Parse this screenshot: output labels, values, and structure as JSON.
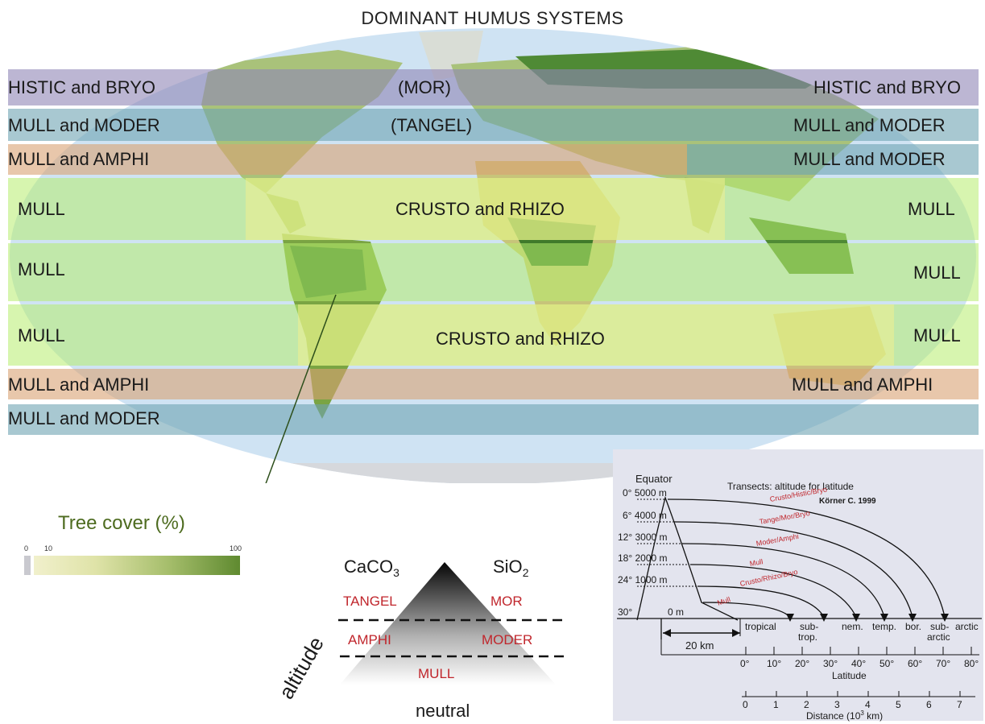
{
  "title": "DOMINANT HUMUS SYSTEMS",
  "map": {
    "band_labels": {
      "histic_left": "HISTIC and BRYO",
      "mor": "(MOR)",
      "histic_right": "HISTIC and BRYO",
      "mull_moder_left_1": "MULL and MODER",
      "tangel": "(TANGEL)",
      "mull_moder_right_1": "MULL and MODER",
      "mull_amphi_left_1": "MULL and AMPHI",
      "mull_moder_right_2": "MULL and MODER",
      "mull_left_1": "MULL",
      "crusto_rhizo_north": "CRUSTO and RHIZO",
      "mull_right_1": "MULL",
      "mull_left_2": "MULL",
      "mull_right_2": "MULL",
      "mull_left_3": "MULL",
      "crusto_rhizo_south": "CRUSTO and RHIZO",
      "mull_right_3": "MULL",
      "mull_amphi_left_2": "MULL and AMPHI",
      "mull_amphi_right_2": "MULL and AMPHI",
      "mull_moder_left_3": "MULL and MODER"
    },
    "colors": {
      "ocean": "#cfe3f3",
      "land": "#a9c27a",
      "forest": "#3f7a2a",
      "purple_band": "#8f85b5",
      "blue_band": "#6ea3b3",
      "orange_band": "#d8a273",
      "green_band": "#b7ec6e",
      "yellow_band": "#e7ef8c"
    }
  },
  "legend": {
    "title": "Tree cover (%)",
    "tick_0": "0",
    "tick_10": "10",
    "tick_100": "100"
  },
  "triangle": {
    "caco3_main": "CaCO",
    "caco3_sub": "3",
    "sio2_main": "SiO",
    "sio2_sub": "2",
    "tangel": "TANGEL",
    "mor": "MOR",
    "amphi": "AMPHI",
    "moder": "MODER",
    "mull": "MULL",
    "neutral": "neutral",
    "altitude": "altitude"
  },
  "inset": {
    "equator": "Equator",
    "title": "Transects: altitude for latitude",
    "citation": "Körner C. 1999",
    "altitudes": [
      {
        "lat": "0°",
        "alt": "5000 m"
      },
      {
        "lat": "6°",
        "alt": "4000 m"
      },
      {
        "lat": "12°",
        "alt": "3000 m"
      },
      {
        "lat": "18°",
        "alt": "2000 m"
      },
      {
        "lat": "24°",
        "alt": "1000 m"
      },
      {
        "lat": "30°",
        "alt": "0 m"
      }
    ],
    "arcs": [
      "Crusto/Histic/Bryo",
      "Tange/Mor/Bryo",
      "Moder/Amphi",
      "Mull",
      "Crusto/Rhizo/Bryo",
      "Mull"
    ],
    "distance_20km": "20 km",
    "zones": [
      "tropical",
      "sub-",
      "trop.",
      "nem.",
      "temp.",
      "bor.",
      "sub-",
      "arctic",
      "arctic"
    ],
    "latitude_ticks": [
      "0°",
      "10°",
      "20°",
      "30°",
      "40°",
      "50°",
      "60°",
      "70°",
      "80°"
    ],
    "latitude_label": "Latitude",
    "distance_ticks": [
      "0",
      "1",
      "2",
      "3",
      "4",
      "5",
      "6",
      "7"
    ],
    "distance_label_main": "Distance (10",
    "distance_label_sup": "3",
    "distance_label_end": " km)"
  }
}
